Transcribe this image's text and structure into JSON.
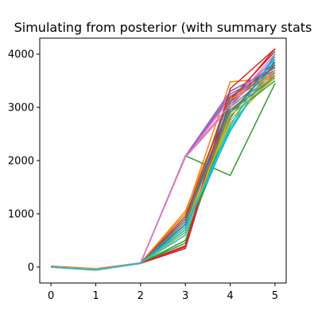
{
  "chart_data": {
    "type": "line",
    "title": "Simulating from posterior (with summary stats",
    "xlabel": "",
    "ylabel": "",
    "x": [
      0,
      1,
      2,
      3,
      4,
      5
    ],
    "xlim": [
      -0.25,
      5.25
    ],
    "ylim": [
      -300,
      4300
    ],
    "xticks": [
      0,
      1,
      2,
      3,
      4,
      5
    ],
    "yticks": [
      0,
      1000,
      2000,
      3000,
      4000
    ],
    "grid": false,
    "legend": "none",
    "series": [
      {
        "color": "#1f77b4",
        "values": [
          0,
          -60,
          70,
          700,
          2900,
          3800
        ]
      },
      {
        "color": "#ff7f0e",
        "values": [
          20,
          -30,
          80,
          1000,
          3480,
          3550
        ]
      },
      {
        "color": "#2ca02c",
        "values": [
          10,
          -40,
          70,
          2090,
          1720,
          3450
        ]
      },
      {
        "color": "#d62728",
        "values": [
          0,
          -50,
          70,
          350,
          3100,
          4100
        ]
      },
      {
        "color": "#9467bd",
        "values": [
          5,
          -40,
          75,
          2080,
          3200,
          3650
        ]
      },
      {
        "color": "#8c564b",
        "values": [
          0,
          -50,
          70,
          850,
          3300,
          3750
        ]
      },
      {
        "color": "#e377c2",
        "values": [
          10,
          -40,
          75,
          2070,
          3150,
          3900
        ]
      },
      {
        "color": "#7f7f7f",
        "values": [
          0,
          -50,
          70,
          800,
          3000,
          3700
        ]
      },
      {
        "color": "#bcbd22",
        "values": [
          0,
          -45,
          70,
          750,
          2700,
          3600
        ]
      },
      {
        "color": "#17becf",
        "values": [
          0,
          -55,
          70,
          600,
          2600,
          3850
        ]
      },
      {
        "color": "#1f77b4",
        "values": [
          0,
          -50,
          70,
          650,
          2800,
          3950
        ]
      },
      {
        "color": "#ff7f0e",
        "values": [
          5,
          -40,
          70,
          900,
          3200,
          3650
        ]
      },
      {
        "color": "#2ca02c",
        "values": [
          0,
          -50,
          70,
          450,
          2850,
          3500
        ]
      },
      {
        "color": "#d62728",
        "values": [
          0,
          -50,
          70,
          380,
          3150,
          4050
        ]
      },
      {
        "color": "#9467bd",
        "values": [
          5,
          -45,
          75,
          2080,
          3250,
          3700
        ]
      },
      {
        "color": "#8c564b",
        "values": [
          0,
          -50,
          70,
          900,
          3050,
          3800
        ]
      },
      {
        "color": "#e377c2",
        "values": [
          5,
          -45,
          75,
          2060,
          3000,
          3950
        ]
      },
      {
        "color": "#7f7f7f",
        "values": [
          0,
          -50,
          70,
          700,
          2950,
          3650
        ]
      },
      {
        "color": "#bcbd22",
        "values": [
          0,
          -45,
          70,
          800,
          2750,
          3700
        ]
      },
      {
        "color": "#17becf",
        "values": [
          0,
          -55,
          70,
          750,
          2550,
          3900
        ]
      },
      {
        "color": "#1f77b4",
        "values": [
          0,
          -50,
          70,
          800,
          3100,
          3850
        ]
      },
      {
        "color": "#ff7f0e",
        "values": [
          10,
          -40,
          75,
          1050,
          3150,
          3600
        ]
      },
      {
        "color": "#2ca02c",
        "values": [
          0,
          -50,
          70,
          500,
          2950,
          3550
        ]
      },
      {
        "color": "#d62728",
        "values": [
          0,
          -50,
          70,
          400,
          3350,
          4100
        ]
      },
      {
        "color": "#9467bd",
        "values": [
          5,
          -40,
          75,
          2085,
          3300,
          3750
        ]
      },
      {
        "color": "#8c564b",
        "values": [
          0,
          -50,
          70,
          950,
          3200,
          3750
        ]
      },
      {
        "color": "#e377c2",
        "values": [
          5,
          -40,
          75,
          2075,
          3050,
          4000
        ]
      },
      {
        "color": "#7f7f7f",
        "values": [
          0,
          -50,
          70,
          850,
          2900,
          3600
        ]
      },
      {
        "color": "#bcbd22",
        "values": [
          0,
          -45,
          70,
          650,
          2850,
          3550
        ]
      },
      {
        "color": "#17becf",
        "values": [
          0,
          -55,
          70,
          700,
          2650,
          4000
        ]
      }
    ]
  }
}
